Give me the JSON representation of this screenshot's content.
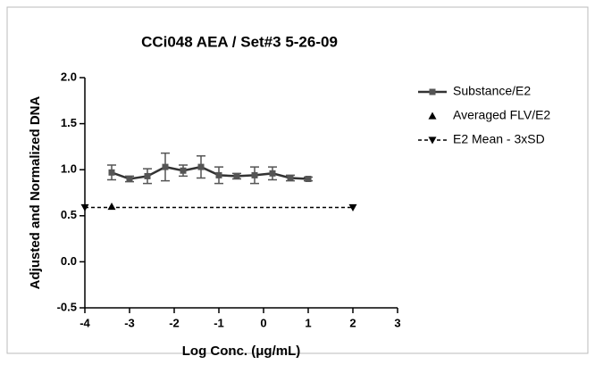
{
  "chart_data": {
    "type": "line",
    "title": "CCi048 AEA / Set#3 5-26-09",
    "x_label": "Log Conc. (μg/mL)",
    "y_label": "Adjusted and Normalized DNA",
    "xlim": [
      -4,
      3
    ],
    "xticks": [
      -4,
      -3,
      -2,
      -1,
      0,
      1,
      2,
      3
    ],
    "ylim": [
      -0.5,
      2.0
    ],
    "yticks": [
      {
        "value": -0.5,
        "label": "-0.5"
      },
      {
        "value": 0,
        "label": "0.0"
      },
      {
        "value": 0.5,
        "label": "0.5"
      },
      {
        "value": 1.0,
        "label": "1.0"
      },
      {
        "value": 1.5,
        "label": "1.5"
      },
      {
        "value": 2.0,
        "label": "2.0"
      }
    ],
    "series": [
      {
        "name": "Substance/E2",
        "color": "#333333",
        "marker": "square",
        "line": "solid",
        "x": [
          -3.4,
          -3.0,
          -2.6,
          -2.2,
          -1.8,
          -1.4,
          -1.0,
          -0.6,
          -0.2,
          0.2,
          0.6,
          1.0
        ],
        "values": [
          0.97,
          0.9,
          0.93,
          1.03,
          0.99,
          1.03,
          0.94,
          0.93,
          0.94,
          0.96,
          0.91,
          0.9
        ],
        "errors": [
          0.08,
          0.03,
          0.08,
          0.15,
          0.06,
          0.12,
          0.09,
          0.03,
          0.09,
          0.07,
          0.03,
          0.02
        ]
      },
      {
        "name": "Averaged FLV/E2",
        "color": "#000000",
        "marker": "triangle",
        "line": "none",
        "x": [
          -3.4
        ],
        "values": [
          0.6
        ]
      },
      {
        "name": "E2 Mean - 3xSD",
        "color": "#000000",
        "marker": "triangle-down",
        "line": "dashed",
        "x": [
          -4,
          2
        ],
        "values": [
          0.59,
          0.59
        ]
      }
    ]
  }
}
